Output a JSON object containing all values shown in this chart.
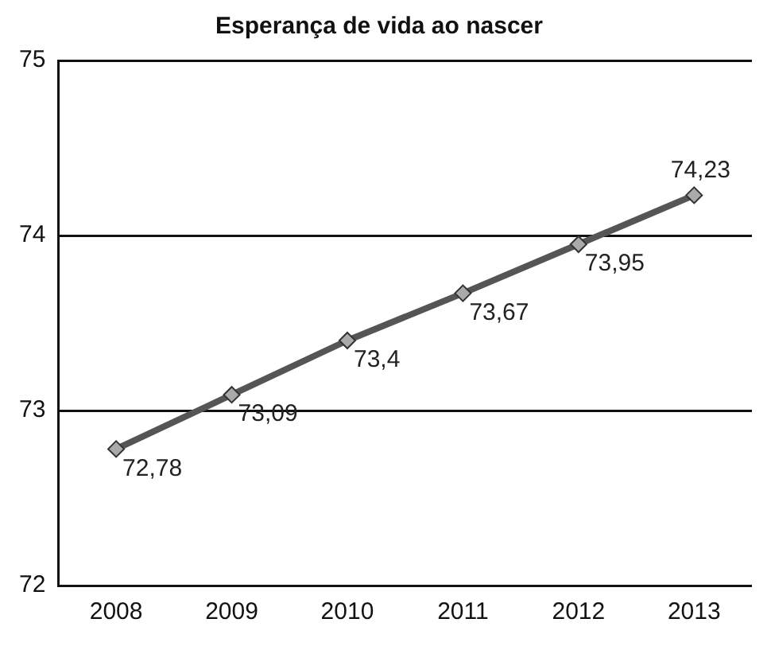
{
  "chart_data": {
    "type": "line",
    "title": "Esperança de vida ao nascer",
    "categories": [
      "2008",
      "2009",
      "2010",
      "2011",
      "2012",
      "2013"
    ],
    "series": [
      {
        "color": "#555555",
        "values": [
          72.78,
          73.09,
          73.4,
          73.67,
          73.95,
          74.23
        ],
        "value_labels": [
          "72,78",
          "73,09",
          "73,4",
          "73,67",
          "73,95",
          "74,23"
        ]
      }
    ],
    "ylim": [
      72,
      75
    ],
    "yticks": [
      72,
      73,
      74,
      75
    ],
    "grid": "y",
    "legend": false,
    "marker": "diamond",
    "line_style": "solid"
  }
}
